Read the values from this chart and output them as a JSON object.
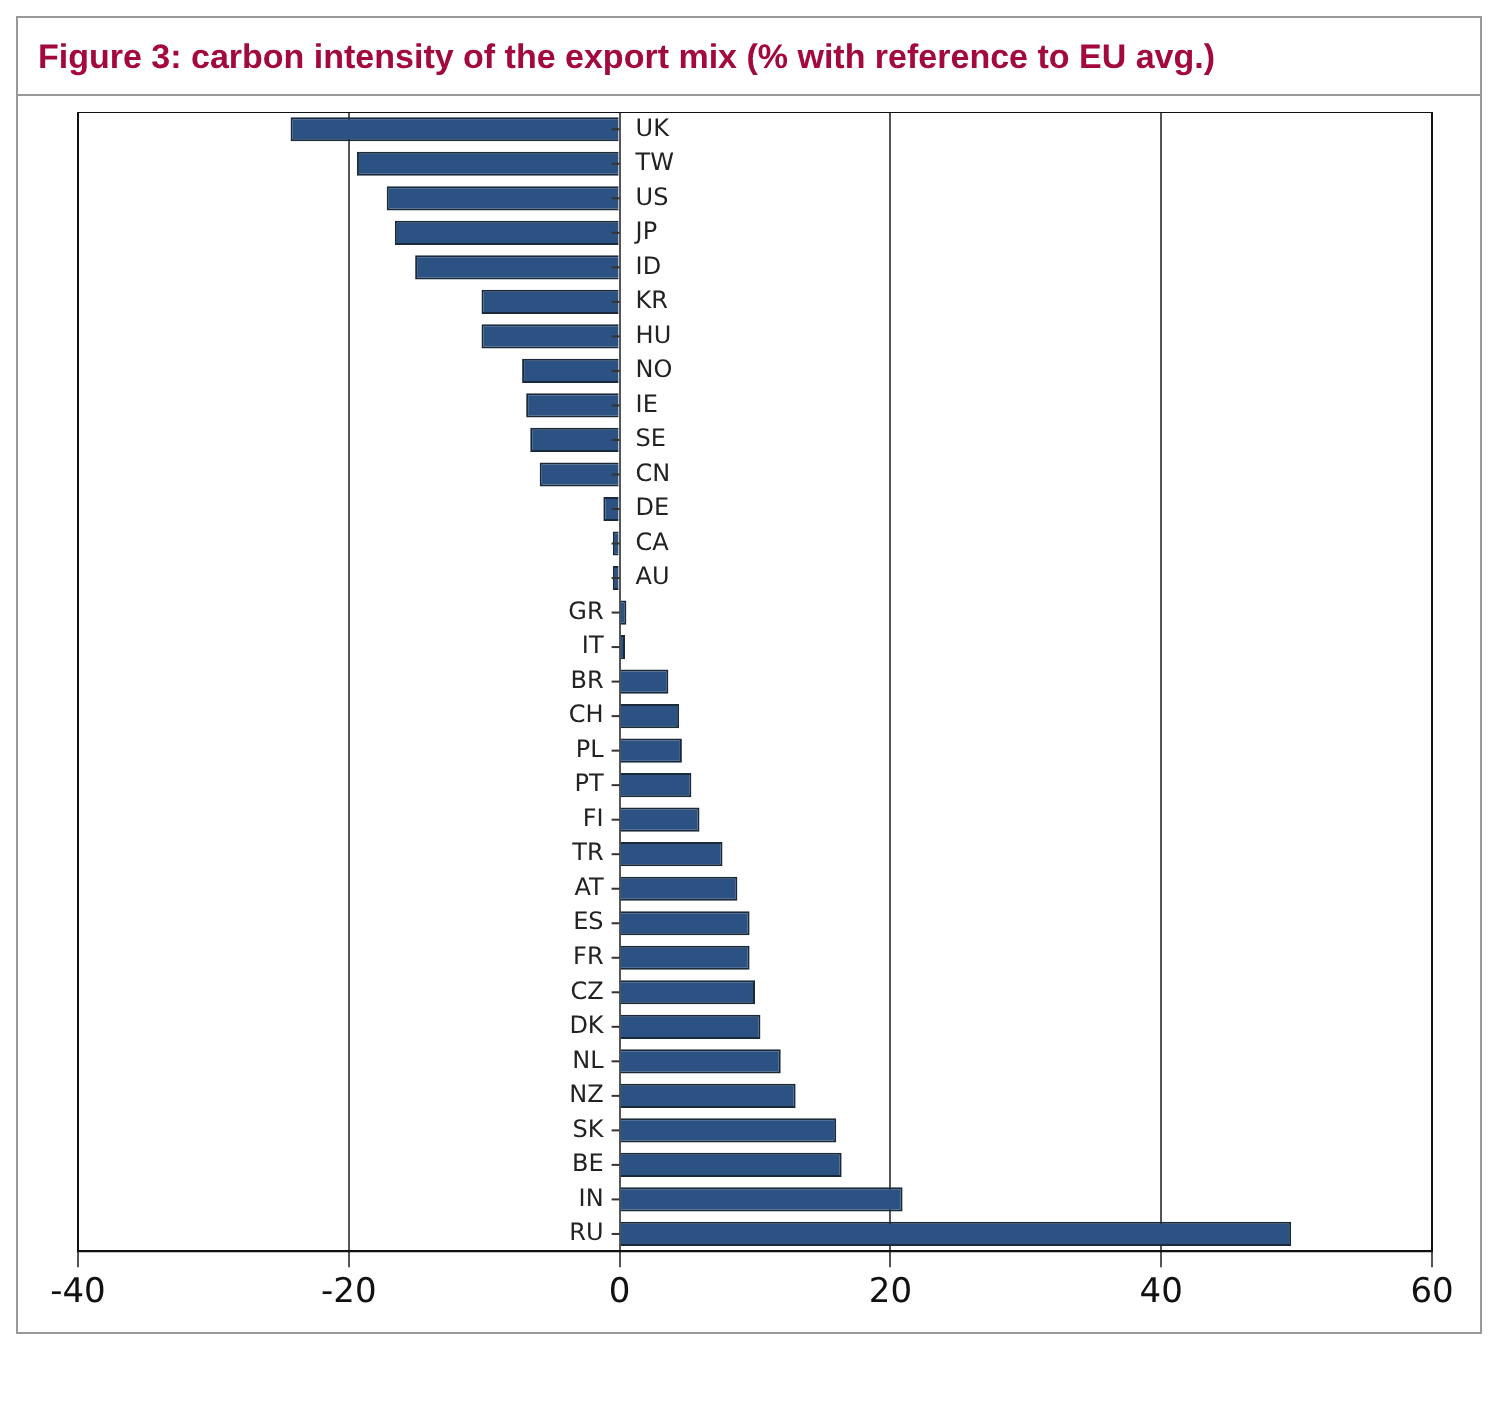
{
  "chart_data": {
    "type": "bar",
    "orientation": "horizontal",
    "title": "Figure 3: carbon intensity of the export mix (% with reference to EU avg.)",
    "categories": [
      "UK",
      "TW",
      "US",
      "JP",
      "ID",
      "KR",
      "HU",
      "NO",
      "IE",
      "SE",
      "CN",
      "DE",
      "CA",
      "AU",
      "GR",
      "IT",
      "BR",
      "CH",
      "PL",
      "PT",
      "FI",
      "TR",
      "AT",
      "ES",
      "FR",
      "CZ",
      "DK",
      "NL",
      "NZ",
      "SK",
      "BE",
      "IN",
      "RU"
    ],
    "values": [
      -24.3,
      -19.4,
      -17.2,
      -16.6,
      -15.1,
      -10.2,
      -10.2,
      -7.2,
      -6.9,
      -6.6,
      -5.9,
      -1.2,
      -0.5,
      -0.5,
      0.5,
      0.4,
      3.6,
      4.4,
      4.6,
      5.3,
      5.9,
      7.6,
      8.7,
      9.6,
      9.6,
      10.0,
      10.4,
      11.9,
      13.0,
      16.0,
      16.4,
      20.9,
      49.6
    ],
    "color": "#2b5282",
    "xlim": [
      -40,
      60
    ],
    "xticks": [
      -40,
      -20,
      0,
      20,
      40,
      60
    ],
    "grid": "x",
    "legend": false
  }
}
